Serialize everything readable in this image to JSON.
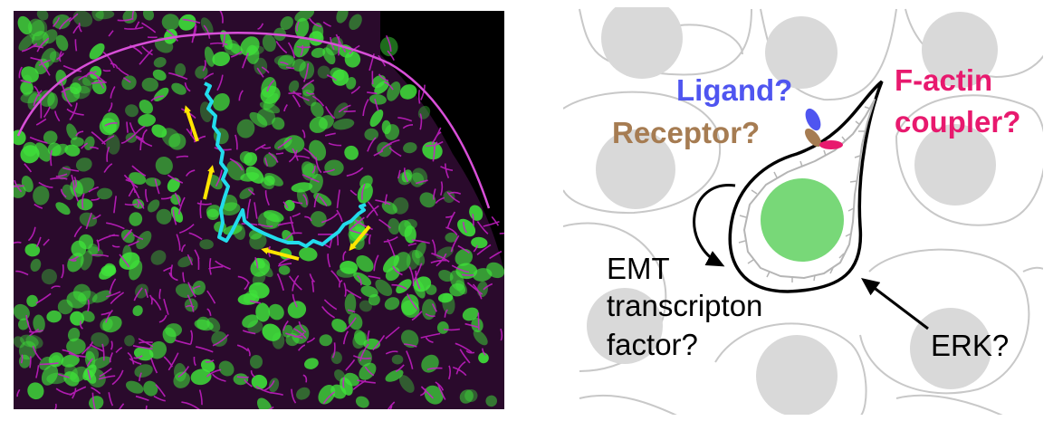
{
  "micrograph": {
    "migration_arrows_color": "#ffe600",
    "cell_track_color": "#22dcec",
    "membrane_stain_color": "#c81fc8",
    "nuclear_stain_color": "#3fe23a"
  },
  "schematic": {
    "labels": {
      "ligand": "Ligand?",
      "receptor": "Receptor?",
      "factin_line1": "F-actin",
      "factin_line2": "coupler?",
      "emt_line1": "EMT",
      "emt_line2": "transcripton",
      "emt_line3": "factor?",
      "erk": "ERK?"
    },
    "colors": {
      "ligand": "#4f55f0",
      "receptor": "#a67c52",
      "factin_coupler": "#e8196e",
      "nucleus": "#78d878",
      "neighbor_nucleus": "#d9d9d9",
      "neighbor_outline": "#c8c8c8",
      "cell_outline": "#000000"
    }
  }
}
